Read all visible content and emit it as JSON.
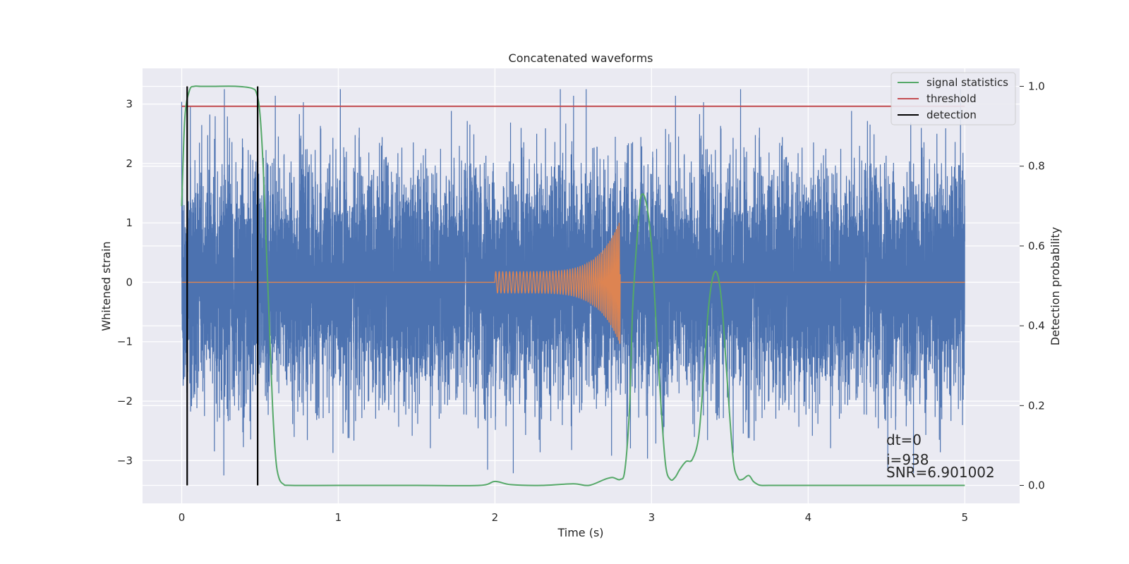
{
  "chart_data": {
    "type": "line",
    "title": "Concatenated waveforms",
    "xlabel": "Time (s)",
    "ylabel": "Whitened strain",
    "y2label": "Detection probability",
    "xlim": [
      -0.25,
      5.35
    ],
    "ylim": [
      -3.72,
      3.6
    ],
    "y2lim": [
      -0.045,
      1.045
    ],
    "xticks": [
      0,
      1,
      2,
      3,
      4,
      5
    ],
    "xtick_labels": [
      "0",
      "1",
      "2",
      "3",
      "4",
      "5"
    ],
    "yticks": [
      -3,
      -2,
      -1,
      0,
      1,
      2,
      3
    ],
    "ytick_labels": [
      "−3",
      "−2",
      "−1",
      "0",
      "1",
      "2",
      "3"
    ],
    "y2ticks": [
      0.0,
      0.2,
      0.4,
      0.6,
      0.8,
      1.0
    ],
    "y2tick_labels": [
      "0.0",
      "0.2",
      "0.4",
      "0.6",
      "0.8",
      "1.0"
    ],
    "grid": true,
    "legend_position": "top-right",
    "colors": {
      "background": "#eaeaf2",
      "grid": "#ffffff",
      "noise": "#4c72b0",
      "injection": "#dd8452",
      "signal": "#55a868",
      "threshold": "#c44e52",
      "detection": "#000000"
    },
    "series": [
      {
        "name": "signal statistics",
        "axis": "right",
        "x": [
          0,
          0.02,
          0.05,
          0.08,
          0.12,
          0.2,
          0.35,
          0.45,
          0.48,
          0.5,
          0.52,
          0.54,
          0.56,
          0.58,
          0.6,
          0.62,
          0.65,
          0.7,
          1.0,
          1.5,
          1.9,
          2.0,
          2.1,
          2.3,
          2.5,
          2.6,
          2.7,
          2.75,
          2.8,
          2.83,
          2.86,
          2.88,
          2.92,
          2.94,
          2.97,
          3.0,
          3.03,
          3.06,
          3.09,
          3.12,
          3.15,
          3.18,
          3.22,
          3.26,
          3.3,
          3.33,
          3.36,
          3.39,
          3.42,
          3.45,
          3.48,
          3.52,
          3.55,
          3.58,
          3.62,
          3.65,
          3.68,
          3.7,
          3.75,
          4.0,
          5.0
        ],
        "values": [
          0.7,
          0.92,
          0.99,
          1.0,
          1.0,
          1.0,
          1.0,
          0.995,
          0.98,
          0.93,
          0.8,
          0.6,
          0.4,
          0.2,
          0.07,
          0.02,
          0.003,
          0.0,
          0.0,
          0.0,
          0.0,
          0.01,
          0.002,
          0.0,
          0.004,
          0.0,
          0.015,
          0.02,
          0.015,
          0.04,
          0.2,
          0.45,
          0.68,
          0.73,
          0.7,
          0.6,
          0.4,
          0.2,
          0.05,
          0.015,
          0.02,
          0.04,
          0.06,
          0.065,
          0.12,
          0.26,
          0.43,
          0.52,
          0.53,
          0.45,
          0.28,
          0.07,
          0.02,
          0.015,
          0.025,
          0.01,
          0.002,
          0.0,
          0.0,
          0.0,
          0.0
        ]
      },
      {
        "name": "threshold",
        "axis": "right",
        "x": [
          0,
          5
        ],
        "values": [
          0.95,
          0.95
        ]
      },
      {
        "name": "detection",
        "axis": "right",
        "type": "vlines",
        "x": [
          0.035,
          0.485
        ],
        "range": [
          0.0,
          1.0
        ]
      },
      {
        "name": "",
        "axis": "left",
        "type": "noise",
        "x_range": [
          0,
          5
        ],
        "sample_rate": 2048,
        "std": 0.95,
        "min": -3.25,
        "max": 3.25
      },
      {
        "name": "",
        "axis": "left",
        "type": "chirp",
        "x_range": [
          2.0,
          2.8
        ],
        "amplitude_start": 0.18,
        "amplitude_end": 1.05,
        "frequency_start": 45,
        "frequency_end": 110
      }
    ],
    "annotations": [
      "dt=0",
      "i=938",
      "SNR=6.901002"
    ]
  }
}
